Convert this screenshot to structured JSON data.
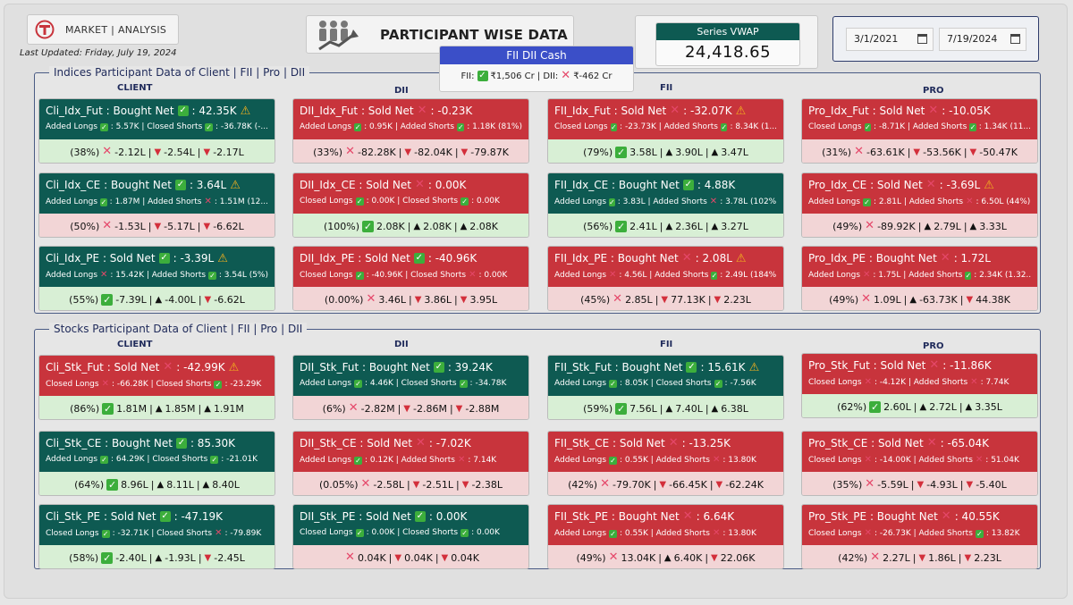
{
  "header": {
    "logo_text": "MARKET | ANALYSIS",
    "last_updated": "Last Updated: Friday, July 19, 2024",
    "title": "PARTICIPANT WISE DATA",
    "vwap_label": "Series VWAP",
    "vwap_value": "24,418.65",
    "date_from": "3/1/2021",
    "date_to": "7/19/2024"
  },
  "cash": {
    "title": "FII DII Cash",
    "fii_label": "FII:",
    "fii_value": "₹1,506 Cr",
    "sep": "| DII:",
    "dii_value": "₹-462 Cr"
  },
  "columns": [
    "CLIENT",
    "DII",
    "FII",
    "PRO"
  ],
  "sections": [
    {
      "title": "Indices Participant Data of Client  |  FII  |  Pro  |  DII",
      "rows": [
        [
          {
            "name": "Cli_Idx_Fut : Bought Net",
            "top": "green",
            "ok": true,
            "val": ": 42.35K",
            "warn": true,
            "l2a": "Added Longs",
            "l2a_ok": true,
            "l2a_v": ": 5.57K | Closed Shorts",
            "l2b_ok": true,
            "l2b_v": ": -36.78K (-...",
            "bot": "green",
            "pct": "(38%)",
            "pct_ok": false,
            "v1": "-2.12L",
            "a1": "down",
            "v2": "-2.54L",
            "a2": "down",
            "v3": "-2.17L"
          },
          {
            "name": "DII_Idx_Fut : Sold Net",
            "top": "red",
            "ok": false,
            "val": ": -0.23K",
            "warn": false,
            "l2a": "Added Longs",
            "l2a_ok": true,
            "l2a_v": ": 0.95K | Added Shorts",
            "l2b_ok": true,
            "l2b_v": ": 1.18K (81%)",
            "bot": "red",
            "pct": "(33%)",
            "pct_ok": false,
            "v1": "-82.28K",
            "a1": "down",
            "v2": "-82.04K",
            "a2": "down",
            "v3": "-79.87K"
          },
          {
            "name": "FII_Idx_Fut : Sold Net",
            "top": "red",
            "ok": false,
            "val": ": -32.07K",
            "warn": true,
            "l2a": "Closed Longs",
            "l2a_ok": true,
            "l2a_v": ": -23.73K | Added Shorts",
            "l2b_ok": true,
            "l2b_v": ": 8.34K (1...",
            "bot": "green",
            "pct": "(79%)",
            "pct_ok": true,
            "v1": "3.58L",
            "a1": "up",
            "v2": "3.90L",
            "a2": "up",
            "v3": "3.47L"
          },
          {
            "name": "Pro_Idx_Fut : Sold Net",
            "top": "red",
            "ok": false,
            "val": ": -10.05K",
            "warn": false,
            "l2a": "Closed Longs",
            "l2a_ok": true,
            "l2a_v": ": -8.71K | Added Shorts",
            "l2b_ok": true,
            "l2b_v": ": 1.34K (11...",
            "bot": "red",
            "pct": "(31%)",
            "pct_ok": false,
            "v1": "-63.61K",
            "a1": "down",
            "v2": "-53.56K",
            "a2": "down",
            "v3": "-50.47K"
          }
        ],
        [
          {
            "name": "Cli_Idx_CE : Bought Net",
            "top": "green",
            "ok": true,
            "val": ": 3.64L",
            "warn": true,
            "l2a": "Added Longs",
            "l2a_ok": true,
            "l2a_v": ": 1.87M | Added Shorts",
            "l2b_ok": false,
            "l2b_v": ": 1.51M (12...",
            "bot": "red",
            "pct": "(50%)",
            "pct_ok": false,
            "v1": "-1.53L",
            "a1": "down",
            "v2": "-5.17L",
            "a2": "down",
            "v3": "-6.62L"
          },
          {
            "name": "DII_Idx_CE : Sold Net",
            "top": "red",
            "ok": false,
            "val": ": 0.00K",
            "warn": false,
            "l2a": "Closed Longs",
            "l2a_ok": true,
            "l2a_v": ": 0.00K | Closed Shorts",
            "l2b_ok": true,
            "l2b_v": ": 0.00K",
            "bot": "green",
            "pct": "(100%)",
            "pct_ok": true,
            "v1": "2.08K",
            "a1": "up",
            "v2": "2.08K",
            "a2": "up",
            "v3": "2.08K"
          },
          {
            "name": "FII_Idx_CE : Bought Net",
            "top": "green",
            "ok": true,
            "val": ": 4.88K",
            "warn": false,
            "l2a": "Added Longs",
            "l2a_ok": true,
            "l2a_v": ": 3.83L | Added Shorts",
            "l2b_ok": false,
            "l2b_v": ": 3.78L (102%)",
            "bot": "green",
            "pct": "(56%)",
            "pct_ok": true,
            "v1": "2.41L",
            "a1": "up",
            "v2": "2.36L",
            "a2": "up",
            "v3": "3.27L"
          },
          {
            "name": "Pro_Idx_CE : Sold Net",
            "top": "red",
            "ok": false,
            "val": ": -3.69L",
            "warn": true,
            "l2a": "Added Longs",
            "l2a_ok": true,
            "l2a_v": ": 2.81L | Added Shorts",
            "l2b_ok": false,
            "l2b_v": ": 6.50L (44%)",
            "bot": "red",
            "pct": "(49%)",
            "pct_ok": false,
            "v1": "-89.92K",
            "a1": "up",
            "v2": "2.79L",
            "a2": "up",
            "v3": "3.33L"
          }
        ],
        [
          {
            "name": "Cli_Idx_PE : Sold Net",
            "top": "green",
            "ok": true,
            "val": ": -3.39L",
            "warn": true,
            "l2a": "Added Longs",
            "l2a_ok": false,
            "l2a_v": ": 15.42K | Added Shorts",
            "l2b_ok": true,
            "l2b_v": ": 3.54L (5%)",
            "bot": "green",
            "pct": "(55%)",
            "pct_ok": true,
            "v1": "-7.39L",
            "a1": "up",
            "v2": "-4.00L",
            "a2": "down",
            "v3": "-6.62L"
          },
          {
            "name": "DII_Idx_PE : Sold Net",
            "top": "red",
            "ok": true,
            "val": ": -40.96K",
            "warn": false,
            "l2a": "Closed Longs",
            "l2a_ok": true,
            "l2a_v": ": -40.96K | Closed Shorts",
            "l2b_ok": false,
            "l2b_v": ": 0.00K",
            "bot": "red",
            "pct": "(0.00%)",
            "pct_ok": false,
            "v1": "3.46L",
            "a1": "down",
            "v2": "3.86L",
            "a2": "down",
            "v3": "3.95L"
          },
          {
            "name": "FII_Idx_PE : Bought Net",
            "top": "red",
            "ok": false,
            "val": ": 2.08L",
            "warn": true,
            "l2a": "Added Longs",
            "l2a_ok": false,
            "l2a_v": ": 4.56L | Added Shorts",
            "l2b_ok": true,
            "l2b_v": ": 2.49L (184%)",
            "bot": "red",
            "pct": "(45%)",
            "pct_ok": false,
            "v1": "2.85L",
            "a1": "down",
            "v2": "77.13K",
            "a2": "down",
            "v3": "2.23L"
          },
          {
            "name": "Pro_Idx_PE : Bought Net",
            "top": "red",
            "ok": false,
            "val": ": 1.72L",
            "warn": false,
            "l2a": "Added Longs",
            "l2a_ok": false,
            "l2a_v": ": 1.75L | Added Shorts",
            "l2b_ok": true,
            "l2b_v": ": 2.34K (1.32...",
            "bot": "red",
            "pct": "(49%)",
            "pct_ok": false,
            "v1": "1.09L",
            "a1": "up",
            "v2": "-63.73K",
            "a2": "down",
            "v3": "44.38K"
          }
        ]
      ]
    },
    {
      "title": "Stocks Participant Data of Client  |  FII  |  Pro  |  DII",
      "rows": [
        [
          {
            "name": "Cli_Stk_Fut : Sold Net",
            "top": "red",
            "ok": false,
            "val": ": -42.99K",
            "warn": true,
            "l2a": "Closed Longs",
            "l2a_ok": false,
            "l2a_v": ": -66.28K | Closed Shorts",
            "l2b_ok": true,
            "l2b_v": ": -23.29K",
            "bot": "green",
            "pct": "(86%)",
            "pct_ok": true,
            "v1": "1.81M",
            "a1": "up",
            "v2": "1.85M",
            "a2": "up",
            "v3": "1.91M"
          },
          {
            "name": "DII_Stk_Fut : Bought Net",
            "top": "green",
            "ok": true,
            "val": ": 39.24K",
            "warn": false,
            "l2a": "Added Longs",
            "l2a_ok": true,
            "l2a_v": ": 4.46K | Closed Shorts",
            "l2b_ok": true,
            "l2b_v": ": -34.78K",
            "bot": "red",
            "pct": "(6%)",
            "pct_ok": false,
            "v1": "-2.82M",
            "a1": "down",
            "v2": "-2.86M",
            "a2": "down",
            "v3": "-2.88M"
          },
          {
            "name": "FII_Stk_Fut : Bought Net",
            "top": "green",
            "ok": true,
            "val": ": 15.61K",
            "warn": true,
            "l2a": "Added Longs",
            "l2a_ok": true,
            "l2a_v": ": 8.05K | Closed Shorts",
            "l2b_ok": true,
            "l2b_v": ": -7.56K",
            "bot": "green",
            "pct": "(59%)",
            "pct_ok": true,
            "v1": "7.56L",
            "a1": "up",
            "v2": "7.40L",
            "a2": "up",
            "v3": "6.38L"
          },
          {
            "name": "Pro_Stk_Fut : Sold Net",
            "top": "red",
            "ok": false,
            "val": ": -11.86K",
            "warn": false,
            "l2a": "Closed Longs",
            "l2a_ok": false,
            "l2a_v": ": -4.12K | Added Shorts",
            "l2b_ok": false,
            "l2b_v": ": 7.74K",
            "bot": "green",
            "pct": "(62%)",
            "pct_ok": true,
            "v1": "2.60L",
            "a1": "up",
            "v2": "2.72L",
            "a2": "up",
            "v3": "3.35L"
          }
        ],
        [
          {
            "name": "Cli_Stk_CE : Bought Net",
            "top": "green",
            "ok": true,
            "val": ": 85.30K",
            "warn": false,
            "l2a": "Added Longs",
            "l2a_ok": true,
            "l2a_v": ": 64.29K | Closed Shorts",
            "l2b_ok": true,
            "l2b_v": ": -21.01K",
            "bot": "green",
            "pct": "(64%)",
            "pct_ok": true,
            "v1": "8.96L",
            "a1": "up",
            "v2": "8.11L",
            "a2": "up",
            "v3": "8.40L"
          },
          {
            "name": "DII_Stk_CE : Sold Net",
            "top": "red",
            "ok": false,
            "val": ": -7.02K",
            "warn": false,
            "l2a": "Added Longs",
            "l2a_ok": true,
            "l2a_v": ": 0.12K | Added Shorts",
            "l2b_ok": false,
            "l2b_v": ": 7.14K",
            "bot": "red",
            "pct": "(0.05%)",
            "pct_ok": false,
            "v1": "-2.58L",
            "a1": "down",
            "v2": "-2.51L",
            "a2": "down",
            "v3": "-2.38L"
          },
          {
            "name": "FII_Stk_CE : Sold Net",
            "top": "red",
            "ok": false,
            "val": ": -13.25K",
            "warn": false,
            "l2a": "Added Longs",
            "l2a_ok": true,
            "l2a_v": ": 0.55K | Added Shorts",
            "l2b_ok": false,
            "l2b_v": ": 13.80K",
            "bot": "red",
            "pct": "(42%)",
            "pct_ok": false,
            "v1": "-79.70K",
            "a1": "down",
            "v2": "-66.45K",
            "a2": "down",
            "v3": "-62.24K"
          },
          {
            "name": "Pro_Stk_CE : Sold Net",
            "top": "red",
            "ok": false,
            "val": ": -65.04K",
            "warn": false,
            "l2a": "Closed Longs",
            "l2a_ok": false,
            "l2a_v": ": -14.00K | Added Shorts",
            "l2b_ok": false,
            "l2b_v": ": 51.04K",
            "bot": "red",
            "pct": "(35%)",
            "pct_ok": false,
            "v1": "-5.59L",
            "a1": "down",
            "v2": "-4.93L",
            "a2": "down",
            "v3": "-5.40L"
          }
        ],
        [
          {
            "name": "Cli_Stk_PE : Sold Net",
            "top": "green",
            "ok": true,
            "val": ": -47.19K",
            "warn": false,
            "l2a": "Closed Longs",
            "l2a_ok": true,
            "l2a_v": ": -32.71K | Closed Shorts",
            "l2b_ok": false,
            "l2b_v": ": -79.89K",
            "bot": "green",
            "pct": "(58%)",
            "pct_ok": true,
            "v1": "-2.40L",
            "a1": "up",
            "v2": "-1.93L",
            "a2": "down",
            "v3": "-2.45L"
          },
          {
            "name": "DII_Stk_PE : Sold Net",
            "top": "green",
            "ok": true,
            "val": ": 0.00K",
            "warn": false,
            "l2a": "Closed Longs",
            "l2a_ok": true,
            "l2a_v": ": 0.00K | Closed Shorts",
            "l2b_ok": true,
            "l2b_v": ": 0.00K",
            "bot": "red",
            "pct": "",
            "pct_ok": false,
            "v1": "0.04K",
            "a1": "down",
            "v2": "0.04K",
            "a2": "down",
            "v3": "0.04K"
          },
          {
            "name": "FII_Stk_PE : Bought Net",
            "top": "red",
            "ok": false,
            "val": ": 6.64K",
            "warn": false,
            "l2a": "Added Longs",
            "l2a_ok": true,
            "l2a_v": ": 0.55K | Added Shorts",
            "l2b_ok": false,
            "l2b_v": ": 13.80K",
            "bot": "red",
            "pct": "(49%)",
            "pct_ok": false,
            "v1": "13.04K",
            "a1": "up",
            "v2": "6.40K",
            "a2": "down",
            "v3": "22.06K"
          },
          {
            "name": "Pro_Stk_PE : Bought Net",
            "top": "red",
            "ok": false,
            "val": ": 40.55K",
            "warn": false,
            "l2a": "Closed Longs",
            "l2a_ok": false,
            "l2a_v": ": -26.73K | Added Shorts",
            "l2b_ok": true,
            "l2b_v": ": 13.82K",
            "bot": "red",
            "pct": "(42%)",
            "pct_ok": false,
            "v1": "2.27L",
            "a1": "down",
            "v2": "1.86L",
            "a2": "down",
            "v3": "2.23L"
          }
        ]
      ]
    }
  ]
}
